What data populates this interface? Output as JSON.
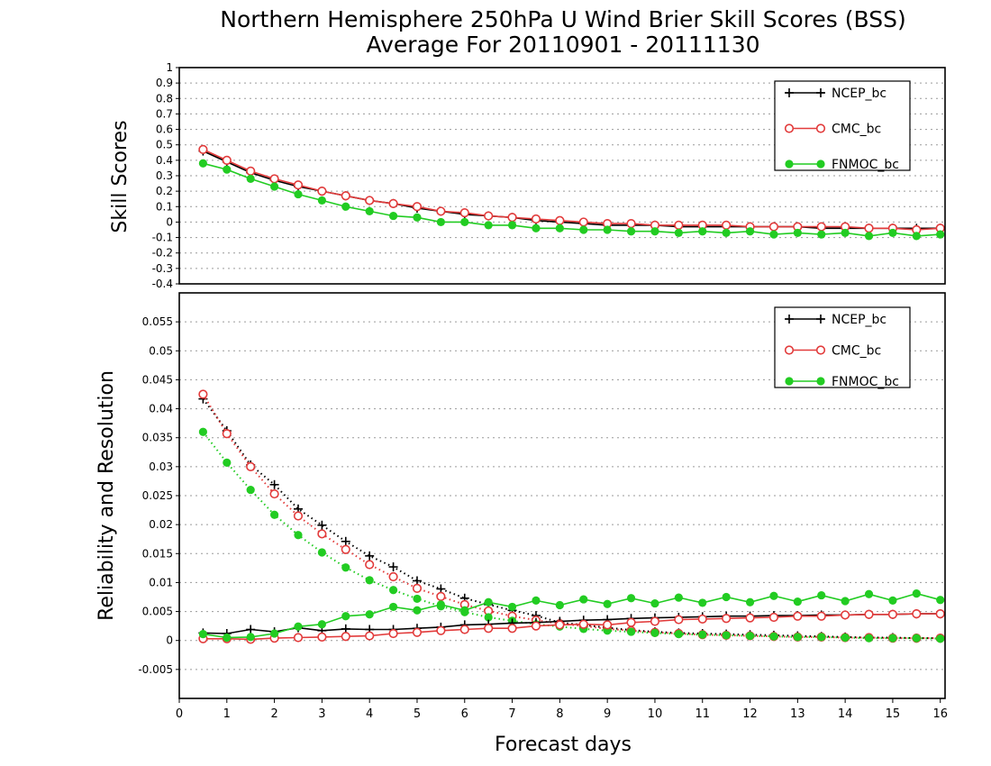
{
  "chart_data": [
    {
      "type": "line",
      "title": "Northern Hemisphere 250hPa U Wind Brier Skill Scores (BSS)",
      "subtitle": "Average For 20110901 - 20111130",
      "ylabel": "Skill Scores",
      "ylim": [
        -0.4,
        1
      ],
      "yticks": [
        "1",
        "0.9",
        "0.8",
        "0.7",
        "0.6",
        "0.5",
        "0.4",
        "0.3",
        "0.2",
        "0.1",
        "0",
        "-0.1",
        "-0.2",
        "-0.3",
        "-0.4"
      ],
      "xlim": [
        0,
        16.1
      ],
      "x": [
        0.5,
        1,
        1.5,
        2,
        2.5,
        3,
        3.5,
        4,
        4.5,
        5,
        5.5,
        6,
        6.5,
        7,
        7.5,
        8,
        8.5,
        9,
        9.5,
        10,
        10.5,
        11,
        11.5,
        12,
        12.5,
        13,
        13.5,
        14,
        14.5,
        15,
        15.5,
        16
      ],
      "grid": true,
      "legend_position": "top-right",
      "series": [
        {
          "name": "NCEP_bc",
          "color": "#000000",
          "marker": "plus",
          "style": "solid",
          "values": [
            0.46,
            0.39,
            0.32,
            0.27,
            0.23,
            0.2,
            0.17,
            0.14,
            0.12,
            0.09,
            0.07,
            0.05,
            0.04,
            0.03,
            0.01,
            0.0,
            -0.01,
            -0.02,
            -0.02,
            -0.02,
            -0.03,
            -0.03,
            -0.03,
            -0.03,
            -0.03,
            -0.03,
            -0.04,
            -0.04,
            -0.04,
            -0.04,
            -0.04,
            -0.04
          ]
        },
        {
          "name": "CMC_bc",
          "color": "#e23b3b",
          "marker": "open-circle",
          "style": "solid",
          "values": [
            0.47,
            0.4,
            0.33,
            0.28,
            0.24,
            0.2,
            0.17,
            0.14,
            0.12,
            0.1,
            0.07,
            0.06,
            0.04,
            0.03,
            0.02,
            0.01,
            0.0,
            -0.01,
            -0.01,
            -0.02,
            -0.02,
            -0.02,
            -0.02,
            -0.03,
            -0.03,
            -0.03,
            -0.03,
            -0.03,
            -0.04,
            -0.04,
            -0.05,
            -0.04
          ]
        },
        {
          "name": "FNMOC_bc",
          "color": "#22cc22",
          "marker": "filled-circle",
          "style": "solid",
          "values": [
            0.38,
            0.34,
            0.28,
            0.23,
            0.18,
            0.14,
            0.1,
            0.07,
            0.04,
            0.03,
            0.0,
            0.0,
            -0.02,
            -0.02,
            -0.04,
            -0.04,
            -0.05,
            -0.05,
            -0.06,
            -0.06,
            -0.07,
            -0.06,
            -0.07,
            -0.06,
            -0.08,
            -0.07,
            -0.08,
            -0.07,
            -0.09,
            -0.07,
            -0.09,
            -0.08
          ]
        }
      ]
    },
    {
      "type": "line",
      "title": "",
      "ylabel": "Reliability and Resolution",
      "xlabel": "Forecast days",
      "ylim": [
        -0.01,
        0.06
      ],
      "yticks": [
        "0.055",
        "0.05",
        "0.045",
        "0.04",
        "0.035",
        "0.03",
        "0.025",
        "0.02",
        "0.015",
        "0.01",
        "0.005",
        "0",
        "-0.005"
      ],
      "xticks": [
        "0",
        "1",
        "2",
        "3",
        "4",
        "5",
        "6",
        "7",
        "8",
        "9",
        "10",
        "11",
        "12",
        "13",
        "14",
        "15",
        "16"
      ],
      "xlim": [
        0,
        16.1
      ],
      "x": [
        0.5,
        1,
        1.5,
        2,
        2.5,
        3,
        3.5,
        4,
        4.5,
        5,
        5.5,
        6,
        6.5,
        7,
        7.5,
        8,
        8.5,
        9,
        9.5,
        10,
        10.5,
        11,
        11.5,
        12,
        12.5,
        13,
        13.5,
        14,
        14.5,
        15,
        15.5,
        16
      ],
      "grid": true,
      "legend_position": "top-right",
      "series": [
        {
          "name": "NCEP_bc",
          "color": "#000000",
          "marker": "plus",
          "style": "dotted",
          "quantity": "reliability",
          "values": [
            0.0417,
            0.0362,
            0.0303,
            0.0269,
            0.0227,
            0.0199,
            0.0171,
            0.0146,
            0.0127,
            0.0103,
            0.0089,
            0.0073,
            0.0062,
            0.0052,
            0.0043,
            0.0031,
            0.0027,
            0.0022,
            0.0018,
            0.0015,
            0.0013,
            0.0012,
            0.0011,
            0.001,
            0.0009,
            0.0008,
            0.0007,
            0.0006,
            0.0005,
            0.0005,
            0.0004,
            0.0004
          ]
        },
        {
          "name": "CMC_bc",
          "color": "#e23b3b",
          "marker": "open-circle",
          "style": "dotted",
          "quantity": "reliability",
          "values": [
            0.0425,
            0.0357,
            0.03,
            0.0253,
            0.0215,
            0.0184,
            0.0157,
            0.0131,
            0.011,
            0.009,
            0.0076,
            0.0062,
            0.0051,
            0.0042,
            0.0035,
            0.0029,
            0.0025,
            0.002,
            0.0017,
            0.0014,
            0.0012,
            0.001,
            0.0009,
            0.0008,
            0.0007,
            0.0006,
            0.0006,
            0.0005,
            0.0005,
            0.0004,
            0.0004,
            0.0004
          ]
        },
        {
          "name": "FNMOC_bc",
          "color": "#22cc22",
          "marker": "filled-circle",
          "style": "dotted",
          "quantity": "reliability",
          "values": [
            0.036,
            0.0307,
            0.026,
            0.0217,
            0.0182,
            0.0152,
            0.0126,
            0.0104,
            0.0087,
            0.0072,
            0.0059,
            0.0049,
            0.004,
            0.0034,
            0.0028,
            0.0024,
            0.002,
            0.0017,
            0.0015,
            0.0013,
            0.0011,
            0.001,
            0.0009,
            0.0008,
            0.0007,
            0.0006,
            0.0006,
            0.0005,
            0.0004,
            0.0004,
            0.0004,
            0.0003
          ]
        },
        {
          "name": "NCEP_bc",
          "color": "#000000",
          "marker": "plus",
          "style": "solid",
          "quantity": "resolution",
          "values": [
            0.0013,
            0.0012,
            0.0019,
            0.0015,
            0.0022,
            0.0017,
            0.002,
            0.0019,
            0.0019,
            0.0021,
            0.0023,
            0.0027,
            0.0028,
            0.003,
            0.0031,
            0.0033,
            0.0035,
            0.0036,
            0.0038,
            0.0039,
            0.004,
            0.0041,
            0.0042,
            0.0042,
            0.0043,
            0.0043,
            0.0044,
            0.0044,
            0.0045,
            0.0045,
            0.0046,
            0.0046
          ]
        },
        {
          "name": "CMC_bc",
          "color": "#e23b3b",
          "marker": "open-circle",
          "style": "solid",
          "quantity": "resolution",
          "values": [
            0.0003,
            0.0003,
            0.0002,
            0.0004,
            0.0005,
            0.0006,
            0.0007,
            0.0008,
            0.0012,
            0.0014,
            0.0017,
            0.0019,
            0.0021,
            0.0021,
            0.0025,
            0.0027,
            0.0028,
            0.0027,
            0.0031,
            0.0033,
            0.0036,
            0.0037,
            0.0038,
            0.0039,
            0.004,
            0.0042,
            0.0042,
            0.0044,
            0.0045,
            0.0045,
            0.0046,
            0.0046
          ]
        },
        {
          "name": "FNMOC_bc",
          "color": "#22cc22",
          "marker": "filled-circle",
          "style": "solid",
          "quantity": "resolution",
          "values": [
            0.0011,
            0.0005,
            0.0006,
            0.0012,
            0.0024,
            0.0028,
            0.0042,
            0.0045,
            0.0058,
            0.0052,
            0.0062,
            0.0052,
            0.0066,
            0.0058,
            0.0069,
            0.0061,
            0.0071,
            0.0063,
            0.0073,
            0.0064,
            0.0074,
            0.0065,
            0.0075,
            0.0066,
            0.0077,
            0.0067,
            0.0078,
            0.0068,
            0.008,
            0.0069,
            0.0081,
            0.007
          ]
        }
      ]
    }
  ]
}
